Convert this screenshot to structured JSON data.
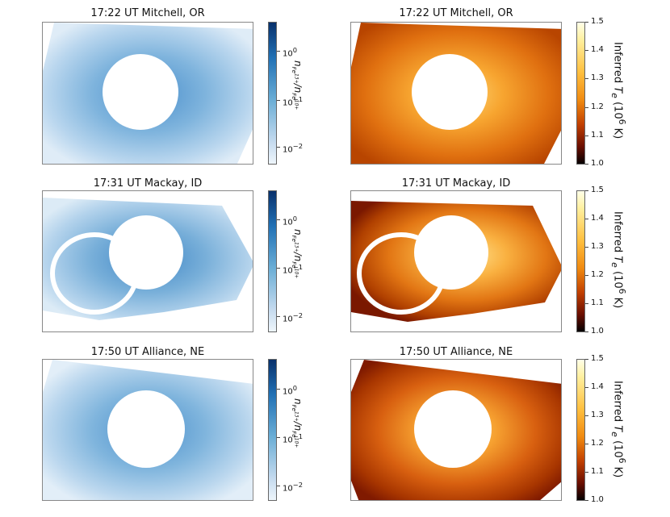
{
  "panels": [
    {
      "title": "17:22 UT  Mitchell, OR"
    },
    {
      "title": "17:22 UT  Mitchell, OR"
    },
    {
      "title": "17:31 UT  Mackay, ID"
    },
    {
      "title": "17:31 UT  Mackay, ID"
    },
    {
      "title": "17:50 UT  Alliance, NE"
    },
    {
      "title": "17:50 UT  Alliance, NE"
    }
  ],
  "colorbar_blue": {
    "ticks": [
      "10",
      "10",
      "10"
    ],
    "exponents": [
      "0",
      "−1",
      "−2"
    ],
    "label": {
      "n1": "n",
      "n1_sub": "Fe",
      "n1_sup": "13+",
      "slash": "/",
      "n2": "n",
      "n2_sub": "Fe",
      "n2_sup": "10+"
    },
    "colors": [
      "#08306b",
      "#2171b5",
      "#6baed6",
      "#eef5fb"
    ]
  },
  "colorbar_hot": {
    "ticks": [
      "1.5",
      "1.4",
      "1.3",
      "1.2",
      "1.1",
      "1.0"
    ],
    "label": {
      "prefix": "Inferred ",
      "T": "T",
      "T_sub": "e",
      "mid": " (10",
      "exp": "6",
      "suffix": " K)"
    },
    "colors": [
      "#ffffe8",
      "#ffc040",
      "#f08a10",
      "#c24000",
      "#6a0e00",
      "#050000"
    ]
  }
}
